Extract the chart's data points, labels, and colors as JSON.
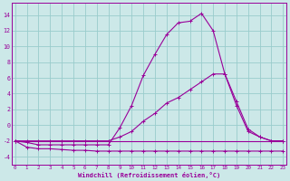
{
  "xlabel": "Windchill (Refroidissement éolien,°C)",
  "background_color": "#cce8e8",
  "grid_color": "#99cccc",
  "line_color": "#990099",
  "x_ticks": [
    0,
    1,
    2,
    3,
    4,
    5,
    6,
    7,
    8,
    9,
    10,
    11,
    12,
    13,
    14,
    15,
    16,
    17,
    18,
    19,
    20,
    21,
    22,
    23
  ],
  "yticks": [
    -4,
    -2,
    0,
    2,
    4,
    6,
    8,
    10,
    12,
    14
  ],
  "ylim": [
    -5,
    15.5
  ],
  "xlim": [
    -0.3,
    23.3
  ],
  "series": [
    {
      "x": [
        0,
        1,
        2,
        3,
        4,
        5,
        6,
        7,
        8,
        9,
        10,
        11,
        12,
        13,
        14,
        15,
        16,
        17,
        18,
        19,
        20,
        21,
        22,
        23
      ],
      "y": [
        -2.0,
        -2.8,
        -3.0,
        -3.0,
        -3.1,
        -3.2,
        -3.2,
        -3.3,
        -3.3,
        -3.3,
        -3.3,
        -3.3,
        -3.3,
        -3.3,
        -3.3,
        -3.3,
        -3.3,
        -3.3,
        -3.3,
        -3.3,
        -3.3,
        -3.3,
        -3.3,
        -3.3
      ],
      "marker": "+"
    },
    {
      "x": [
        0,
        1,
        2,
        3,
        4,
        5,
        6,
        7,
        8,
        9,
        10,
        11,
        12,
        13,
        14,
        15,
        16,
        17,
        18,
        19,
        20,
        21,
        22,
        23
      ],
      "y": [
        -2.0,
        -2.2,
        -2.5,
        -2.5,
        -2.5,
        -2.5,
        -2.5,
        -2.5,
        -2.5,
        -0.3,
        2.5,
        6.3,
        9.0,
        11.5,
        13.0,
        13.2,
        14.2,
        12.0,
        6.5,
        2.5,
        -0.8,
        -1.5,
        -2.0,
        -2.0
      ],
      "marker": "+"
    },
    {
      "x": [
        0,
        1,
        2,
        3,
        4,
        5,
        6,
        7,
        8,
        9,
        10,
        11,
        12,
        13,
        14,
        15,
        16,
        17,
        18,
        19,
        20,
        21,
        22,
        23
      ],
      "y": [
        -2.0,
        -2.0,
        -2.0,
        -2.0,
        -2.0,
        -2.0,
        -2.0,
        -2.0,
        -2.0,
        -1.5,
        -0.8,
        0.5,
        1.5,
        2.8,
        3.5,
        4.5,
        5.5,
        6.5,
        6.5,
        3.0,
        -0.5,
        -1.5,
        -2.0,
        -2.0
      ],
      "marker": "+"
    },
    {
      "x": [
        0,
        1,
        2,
        3,
        4,
        5,
        6,
        7,
        8,
        9,
        10,
        11,
        12,
        13,
        14,
        15,
        16,
        17,
        18,
        19,
        20,
        21,
        22,
        23
      ],
      "y": [
        -2.0,
        -2.0,
        -2.0,
        -2.0,
        -2.0,
        -2.0,
        -2.0,
        -2.0,
        -2.0,
        -2.0,
        -2.0,
        -2.0,
        -2.0,
        -2.0,
        -2.0,
        -2.0,
        -2.0,
        -2.0,
        -2.0,
        -2.0,
        -2.0,
        -2.0,
        -2.0,
        -2.0
      ],
      "marker": null
    }
  ]
}
